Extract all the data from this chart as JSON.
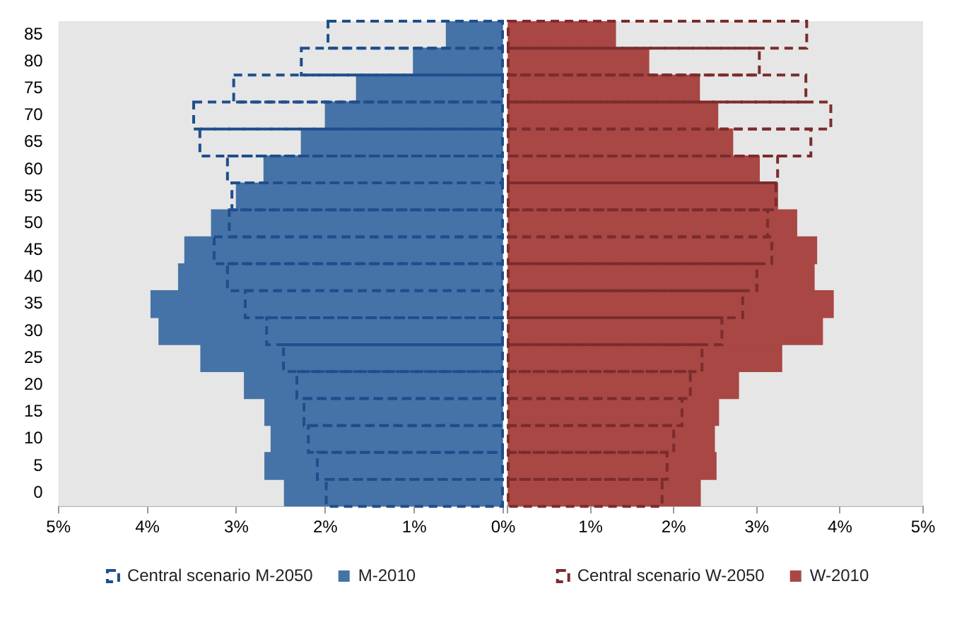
{
  "chart_data": [
    {
      "type": "bar",
      "orientation": "horizontal",
      "categories": [
        "85",
        "80",
        "75",
        "70",
        "65",
        "60",
        "55",
        "50",
        "45",
        "40",
        "35",
        "30",
        "25",
        "20",
        "15",
        "10",
        "5",
        "0"
      ],
      "series": [
        {
          "name": "Central scenario M-2050",
          "color": "#1f4e8c",
          "line_style": "dashed",
          "values": [
            1.97,
            2.27,
            3.03,
            3.48,
            3.41,
            3.1,
            3.05,
            3.08,
            3.25,
            3.1,
            2.9,
            2.66,
            2.47,
            2.32,
            2.24,
            2.19,
            2.09,
            1.99
          ]
        },
        {
          "name": "M-2010",
          "color": "#4573a7",
          "values": [
            0.64,
            1.01,
            1.65,
            2.0,
            2.27,
            2.69,
            3.0,
            3.28,
            3.58,
            3.65,
            3.96,
            3.87,
            3.4,
            2.91,
            2.68,
            2.61,
            2.68,
            2.46
          ]
        }
      ],
      "xlim": [
        5,
        0
      ],
      "xticks": [
        {
          "value": 5,
          "label": "5%"
        },
        {
          "value": 4,
          "label": "4%"
        },
        {
          "value": 3,
          "label": "3%"
        },
        {
          "value": 2,
          "label": "2%"
        },
        {
          "value": 1,
          "label": "1%"
        },
        {
          "value": 0,
          "label": "0%"
        }
      ],
      "grid": false,
      "legend": "bottom"
    },
    {
      "type": "bar",
      "orientation": "horizontal",
      "categories": [
        "85",
        "80",
        "75",
        "70",
        "65",
        "60",
        "55",
        "50",
        "45",
        "40",
        "35",
        "30",
        "25",
        "20",
        "15",
        "10",
        "5",
        "0"
      ],
      "series": [
        {
          "name": "Central scenario W-2050",
          "color": "#7b2c2c",
          "line_style": "dashed",
          "values": [
            3.6,
            3.03,
            3.59,
            3.89,
            3.65,
            3.25,
            3.23,
            3.13,
            3.18,
            3.0,
            2.83,
            2.58,
            2.34,
            2.2,
            2.1,
            2.0,
            1.92,
            1.86
          ]
        },
        {
          "name": "W-2010",
          "color": "#a84744",
          "values": [
            1.3,
            1.7,
            2.31,
            2.53,
            2.71,
            3.03,
            3.25,
            3.48,
            3.72,
            3.69,
            3.92,
            3.79,
            3.3,
            2.78,
            2.54,
            2.49,
            2.51,
            2.32
          ]
        }
      ],
      "xlim": [
        0,
        5
      ],
      "xticks": [
        {
          "value": 0,
          "label": null
        },
        {
          "value": 1,
          "label": "1%"
        },
        {
          "value": 2,
          "label": "2%"
        },
        {
          "value": 3,
          "label": "3%"
        },
        {
          "value": 4,
          "label": "4%"
        },
        {
          "value": 5,
          "label": "5%"
        }
      ],
      "grid": false,
      "legend": "bottom",
      "tick_labels": "x"
    }
  ]
}
